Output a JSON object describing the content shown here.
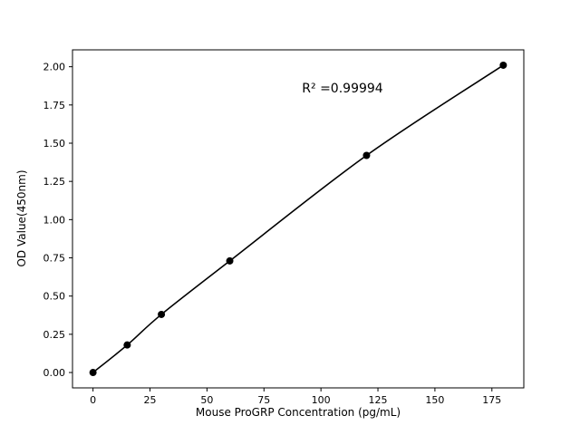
{
  "page": {
    "background": "#ffffff"
  },
  "chart_data": {
    "type": "line",
    "title": "",
    "xlabel": "Mouse ProGRP Concentration (pg/mL)",
    "ylabel": "OD Value(450nm)",
    "x": [
      0,
      15,
      30,
      60,
      120,
      180
    ],
    "y": [
      0.0,
      0.18,
      0.38,
      0.73,
      1.42,
      2.01
    ],
    "xticks": [
      0,
      25,
      50,
      75,
      100,
      125,
      150,
      175
    ],
    "xtick_labels": [
      "0",
      "25",
      "50",
      "75",
      "100",
      "125",
      "150",
      "175"
    ],
    "yticks": [
      0.0,
      0.25,
      0.5,
      0.75,
      1.0,
      1.25,
      1.5,
      1.75,
      2.0
    ],
    "ytick_labels": [
      "0.00",
      "0.25",
      "0.50",
      "0.75",
      "1.00",
      "1.25",
      "1.50",
      "1.75",
      "2.00"
    ],
    "xlim": [
      -9,
      189
    ],
    "ylim": [
      -0.1005,
      2.1105
    ],
    "grid": false,
    "legend": null,
    "line_color": "#000000",
    "marker_color": "#000000",
    "marker": "circle",
    "annotation": {
      "text": "R² =0.99994"
    }
  }
}
